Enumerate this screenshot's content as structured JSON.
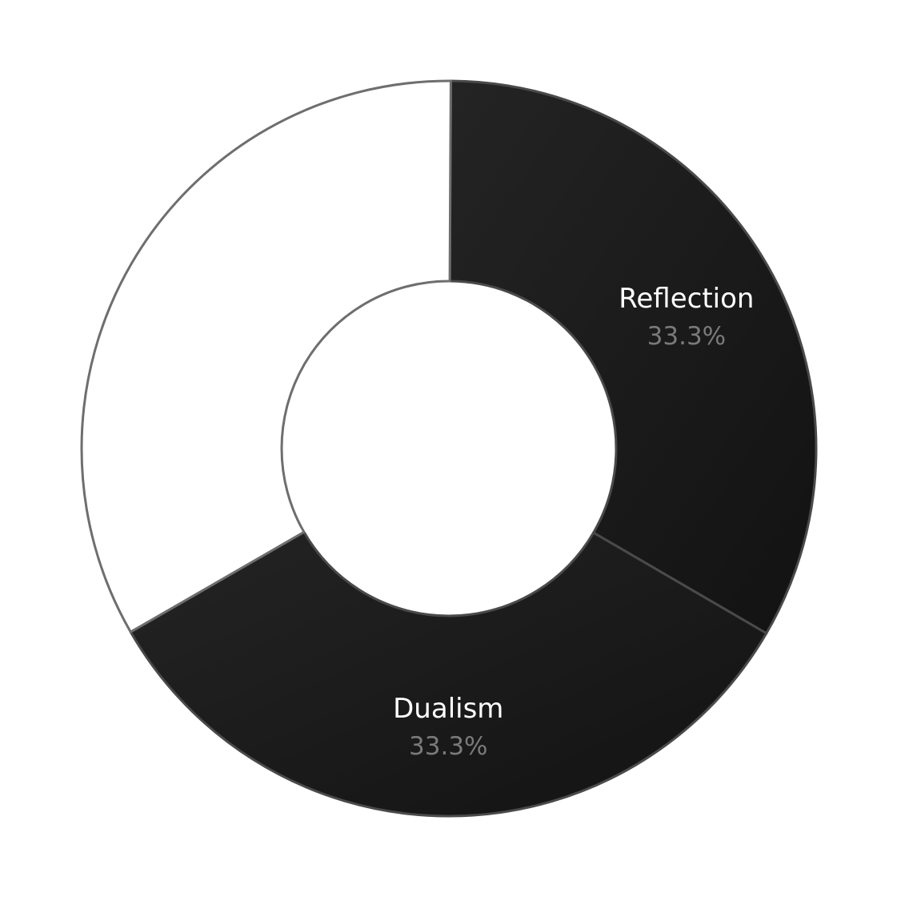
{
  "chart_data": {
    "type": "pie",
    "variant": "donut",
    "slices": [
      {
        "label": "Reflection",
        "value": 33.3,
        "display": "33.3%",
        "color": "#1c1c1c",
        "label_color": "#ffffff",
        "value_color": "#7a7a7a"
      },
      {
        "label": "Dualism",
        "value": 33.3,
        "display": "33.3%",
        "color": "#161616",
        "label_color": "#ffffff",
        "value_color": "#7a7a7a"
      },
      {
        "label": "",
        "value": 33.4,
        "display": "",
        "color": "#ffffff",
        "label_color": "#ffffff",
        "value_color": "#7a7a7a"
      }
    ],
    "stroke_color": "#4a4a4a",
    "legend": "none"
  }
}
